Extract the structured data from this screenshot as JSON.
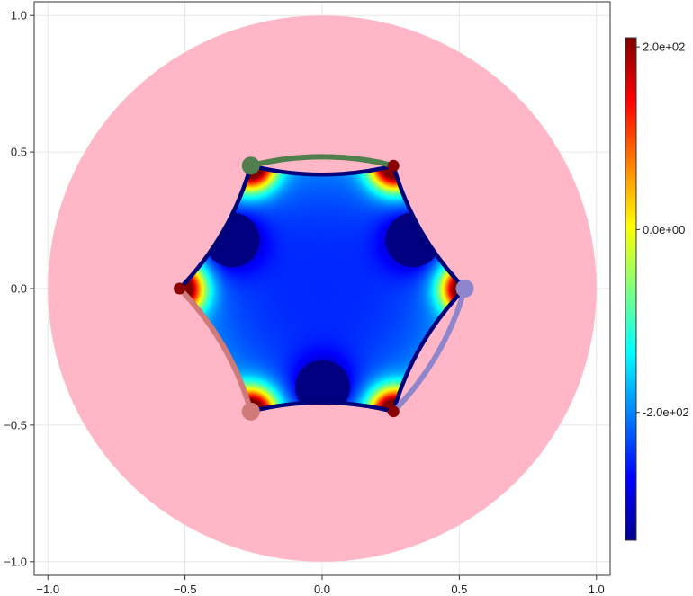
{
  "chart_data": {
    "type": "heatmap",
    "title": "",
    "xlabel": "",
    "ylabel": "",
    "xlim": [
      -1.05,
      1.05
    ],
    "ylim": [
      -1.05,
      1.05
    ],
    "grid": true,
    "x_ticks": [
      {
        "value": -1.0,
        "label": "−1.0"
      },
      {
        "value": -0.5,
        "label": "−0.5"
      },
      {
        "value": 0.0,
        "label": "0.0"
      },
      {
        "value": 0.5,
        "label": "0.5"
      },
      {
        "value": 1.0,
        "label": "1.0"
      }
    ],
    "y_ticks": [
      {
        "value": -1.0,
        "label": "−1.0"
      },
      {
        "value": -0.5,
        "label": "−0.5"
      },
      {
        "value": 0.0,
        "label": "0.0"
      },
      {
        "value": 0.5,
        "label": "0.5"
      },
      {
        "value": 1.0,
        "label": "1.0"
      }
    ],
    "disk": {
      "center": [
        0,
        0
      ],
      "radius": 1.0,
      "color": "#ffb6c6"
    },
    "hexagon_vertices": [
      [
        0.52,
        0.0
      ],
      [
        0.26,
        0.45
      ],
      [
        -0.26,
        0.45
      ],
      [
        -0.52,
        0.0
      ],
      [
        -0.26,
        -0.45
      ],
      [
        0.26,
        -0.45
      ]
    ],
    "field": {
      "low_value": -340,
      "high_value": 210,
      "low_regions": [
        [
          0.33,
          0.18
        ],
        [
          -0.33,
          0.18
        ],
        [
          0.0,
          -0.36
        ]
      ],
      "center_value": -250
    },
    "boundary_color": "#00007a",
    "colored_arcs": [
      {
        "from": [
          -0.26,
          0.45
        ],
        "to": [
          0.26,
          0.45
        ],
        "color": "#4e7f4c"
      },
      {
        "from": [
          0.52,
          0.0
        ],
        "to": [
          0.26,
          -0.45
        ],
        "color": "#8e86cc"
      },
      {
        "from": [
          -0.52,
          0.0
        ],
        "to": [
          -0.26,
          -0.45
        ],
        "color": "#d07a7a"
      }
    ],
    "markers": [
      {
        "x": -0.26,
        "y": 0.45,
        "color": "#4e7f4c",
        "size": "large"
      },
      {
        "x": 0.26,
        "y": 0.45,
        "color": "#8b0000",
        "size": "small"
      },
      {
        "x": 0.52,
        "y": 0.0,
        "color": "#8e86cc",
        "size": "large"
      },
      {
        "x": 0.26,
        "y": -0.45,
        "color": "#8b0000",
        "size": "small"
      },
      {
        "x": -0.26,
        "y": -0.45,
        "color": "#d07a7a",
        "size": "large"
      },
      {
        "x": -0.52,
        "y": 0.0,
        "color": "#8b0000",
        "size": "small"
      }
    ],
    "colorbar": {
      "colormap": "jet",
      "min": -340,
      "max": 210,
      "ticks": [
        {
          "value": 200,
          "label": "2.0e+02"
        },
        {
          "value": 0,
          "label": "0.0e+00"
        },
        {
          "value": -200,
          "label": "-2.0e+02"
        }
      ]
    }
  }
}
